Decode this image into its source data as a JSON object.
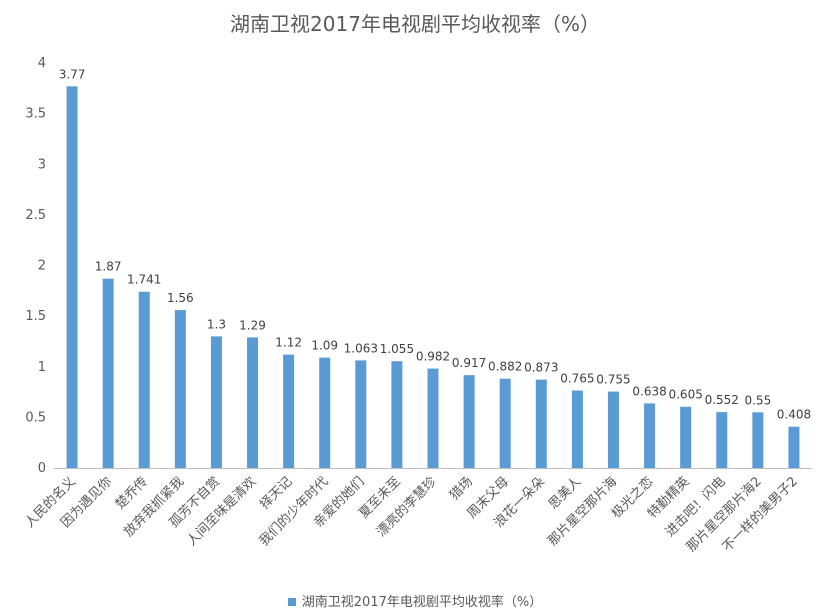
{
  "chart_data": {
    "type": "bar",
    "title": "湖南卫视2017年电视剧平均收视率（%）",
    "categories": [
      "人民的名义",
      "因为遇见你",
      "楚乔传",
      "放弃我抓紧我",
      "孤芳不自赏",
      "人间至味是清欢",
      "择天记",
      "我们的少年时代",
      "亲爱的她们",
      "夏至未至",
      "漂亮的李慧珍",
      "猎场",
      "周末父母",
      "浪花一朵朵",
      "思美人",
      "那片星空那片海",
      "极光之恋",
      "特勤精英",
      "进击吧！闪电",
      "那片星空那片海2",
      "不一样的美男子2"
    ],
    "series": [
      {
        "name": "湖南卫视2017年电视剧平均收视率（%）",
        "values": [
          3.77,
          1.87,
          1.741,
          1.56,
          1.3,
          1.29,
          1.12,
          1.09,
          1.063,
          1.055,
          0.982,
          0.917,
          0.882,
          0.873,
          0.765,
          0.755,
          0.638,
          0.605,
          0.552,
          0.55,
          0.408
        ],
        "labels": [
          "3.77",
          "1.87",
          "1.741",
          "1.56",
          "1.3",
          "1.29",
          "1.12",
          "1.09",
          "1.063",
          "1.055",
          "0.982",
          "0.917",
          "0.882",
          "0.873",
          "0.765",
          "0.755",
          "0.638",
          "0.605",
          "0.552",
          "0.55",
          "0.408"
        ]
      }
    ],
    "yticks": [
      "0",
      "0.5",
      "1",
      "1.5",
      "2",
      "2.5",
      "3",
      "3.5",
      "4"
    ],
    "ylim": [
      0,
      4
    ],
    "grid": false,
    "legend_position": "bottom",
    "bar_color": "#5B9BD5",
    "axis_color": "#595959"
  }
}
